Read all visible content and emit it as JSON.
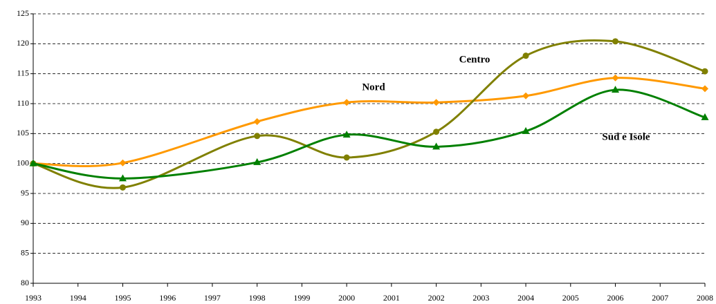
{
  "chart_data": {
    "type": "line",
    "x": [
      1993,
      1995,
      1998,
      2000,
      2002,
      2004,
      2006,
      2008
    ],
    "series": [
      {
        "name": "Nord",
        "color": "#ff9900",
        "marker": "diamond",
        "values": [
          100,
          100.1,
          107,
          110.2,
          110.2,
          111.3,
          114.3,
          112.5
        ]
      },
      {
        "name": "Centro",
        "color": "#808000",
        "marker": "circle",
        "values": [
          100,
          96,
          104.6,
          101,
          105.3,
          118,
          120.4,
          115.4
        ]
      },
      {
        "name": "Sud e Isole",
        "color": "#008000",
        "marker": "triangle",
        "values": [
          100,
          97.5,
          100.2,
          104.8,
          102.8,
          105.4,
          112.3,
          107.7
        ]
      }
    ],
    "xlim": [
      1993,
      2008
    ],
    "xticks": [
      1993,
      1994,
      1995,
      1996,
      1997,
      1998,
      1999,
      2000,
      2001,
      2002,
      2003,
      2004,
      2005,
      2006,
      2007,
      2008
    ],
    "ylim": [
      80,
      125
    ],
    "yticks": [
      80,
      85,
      90,
      95,
      100,
      105,
      110,
      115,
      120,
      125
    ],
    "grid": true,
    "annotations": [
      "Nord",
      "Centro",
      "Sud e Isole"
    ]
  }
}
